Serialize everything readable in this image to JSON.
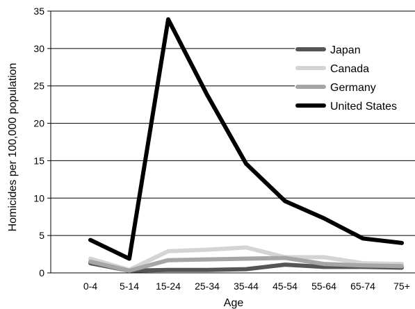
{
  "chart_data": {
    "type": "line",
    "title": "",
    "xlabel": "Age",
    "ylabel": "Homicides per 100,000 population",
    "ylim": [
      0,
      35
    ],
    "yticks": [
      0,
      5,
      10,
      15,
      20,
      25,
      30,
      35
    ],
    "grid": "horizontal",
    "legend": "right",
    "categories": [
      "0-4",
      "5-14",
      "15-24",
      "25-34",
      "35-44",
      "45-54",
      "55-64",
      "65-74",
      "75+"
    ],
    "series": [
      {
        "name": "Japan",
        "color": "#555555",
        "values": [
          1.3,
          0.3,
          0.4,
          0.4,
          0.5,
          1.1,
          0.8,
          0.8,
          0.7
        ]
      },
      {
        "name": "Canada",
        "color": "#d4d4d4",
        "values": [
          1.9,
          0.4,
          2.9,
          3.1,
          3.4,
          2.1,
          2.1,
          1.3,
          1.2
        ]
      },
      {
        "name": "Germany",
        "color": "#a6a6a6",
        "values": [
          1.5,
          0.3,
          1.7,
          1.8,
          1.9,
          2.0,
          1.2,
          1.0,
          0.9
        ]
      },
      {
        "name": "United States",
        "color": "#000000",
        "values": [
          4.4,
          1.9,
          33.9,
          23.8,
          14.6,
          9.6,
          7.3,
          4.6,
          4.0
        ]
      }
    ]
  }
}
